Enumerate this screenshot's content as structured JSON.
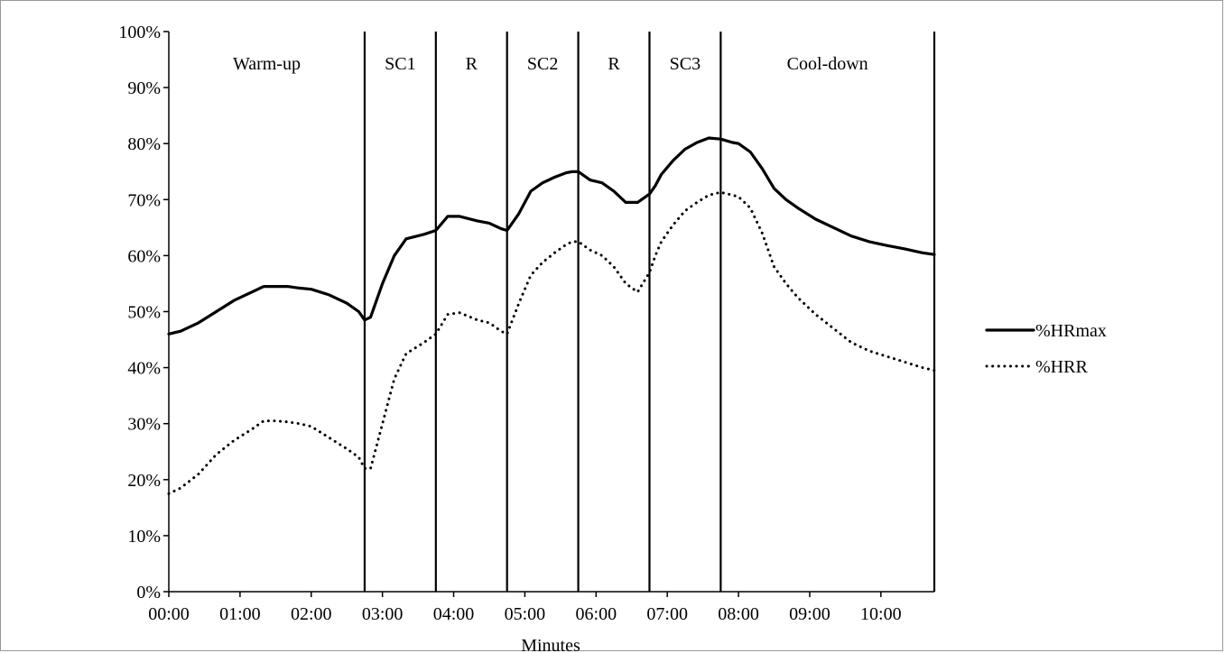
{
  "chart_data": {
    "type": "line",
    "title": "",
    "xlabel": "Minutes",
    "ylabel": "",
    "xlim": [
      0,
      645
    ],
    "ylim": [
      0,
      100
    ],
    "y_ticks": [
      "0%",
      "10%",
      "20%",
      "30%",
      "40%",
      "50%",
      "60%",
      "70%",
      "80%",
      "90%",
      "100%"
    ],
    "x_ticks": [
      {
        "label": "00:00",
        "value": 0
      },
      {
        "label": "01:00",
        "value": 60
      },
      {
        "label": "02:00",
        "value": 120
      },
      {
        "label": "03:00",
        "value": 180
      },
      {
        "label": "04:00",
        "value": 240
      },
      {
        "label": "05:00",
        "value": 300
      },
      {
        "label": "06:00",
        "value": 360
      },
      {
        "label": "07:00",
        "value": 420
      },
      {
        "label": "08:00",
        "value": 480
      },
      {
        "label": "09:00",
        "value": 540
      },
      {
        "label": "10:00",
        "value": 600
      }
    ],
    "phase_boundaries": [
      165,
      225,
      285,
      345,
      405,
      465,
      645
    ],
    "phases": [
      {
        "label": "Warm-up",
        "start": 0,
        "end": 165
      },
      {
        "label": "SC1",
        "start": 165,
        "end": 225
      },
      {
        "label": "R",
        "start": 225,
        "end": 285
      },
      {
        "label": "SC2",
        "start": 285,
        "end": 345
      },
      {
        "label": "R",
        "start": 345,
        "end": 405
      },
      {
        "label": "SC3",
        "start": 405,
        "end": 465
      },
      {
        "label": "Cool-down",
        "start": 465,
        "end": 645
      }
    ],
    "legend_position": "right",
    "series": [
      {
        "name": "%HRmax",
        "style": "solid",
        "x": [
          0,
          10,
          25,
          40,
          55,
          70,
          80,
          90,
          100,
          110,
          120,
          135,
          150,
          160,
          165,
          170,
          180,
          190,
          200,
          215,
          225,
          235,
          245,
          260,
          270,
          280,
          285,
          295,
          305,
          315,
          325,
          335,
          340,
          345,
          355,
          365,
          375,
          385,
          395,
          405,
          410,
          415,
          425,
          435,
          445,
          455,
          465,
          475,
          480,
          490,
          500,
          510,
          520,
          530,
          545,
          560,
          575,
          590,
          605,
          620,
          635,
          645
        ],
        "values": [
          46,
          46.5,
          48,
          50,
          52,
          53.5,
          54.5,
          54.5,
          54.5,
          54.2,
          54,
          53,
          51.5,
          50,
          48.5,
          49,
          55,
          60,
          63,
          63.8,
          64.5,
          67,
          67,
          66.2,
          65.8,
          64.8,
          64.5,
          67.5,
          71.5,
          73,
          74,
          74.8,
          75,
          75,
          73.5,
          73,
          71.5,
          69.5,
          69.5,
          71,
          72.5,
          74.5,
          77,
          79,
          80.2,
          81,
          80.8,
          80.2,
          80,
          78.5,
          75.5,
          72,
          70,
          68.5,
          66.5,
          65,
          63.5,
          62.5,
          61.8,
          61.2,
          60.5,
          60.2
        ]
      },
      {
        "name": "%HRR",
        "style": "dotted",
        "x": [
          0,
          10,
          25,
          40,
          55,
          70,
          80,
          90,
          100,
          110,
          120,
          135,
          150,
          160,
          165,
          170,
          180,
          190,
          200,
          215,
          225,
          235,
          245,
          260,
          270,
          280,
          285,
          295,
          305,
          315,
          325,
          335,
          340,
          345,
          355,
          365,
          375,
          385,
          395,
          405,
          410,
          415,
          425,
          435,
          445,
          455,
          465,
          475,
          480,
          490,
          500,
          510,
          520,
          530,
          545,
          560,
          575,
          590,
          605,
          620,
          635,
          645
        ],
        "values": [
          17.5,
          18.5,
          21,
          24.5,
          27,
          29,
          30.5,
          30.5,
          30.3,
          30,
          29.5,
          27.5,
          25.5,
          24,
          22,
          22,
          30,
          38,
          42.5,
          44.5,
          46,
          49.5,
          49.8,
          48.5,
          48,
          46.5,
          46,
          51.5,
          56.5,
          58.8,
          60.5,
          62,
          62.5,
          62.5,
          61,
          60,
          58,
          55,
          53.5,
          57,
          60,
          62.5,
          65.5,
          68,
          69.5,
          70.8,
          71.3,
          70.8,
          70.5,
          68.5,
          64,
          58,
          55,
          52.5,
          49.5,
          47,
          44.5,
          43,
          42,
          41,
          40,
          39.5
        ]
      }
    ]
  }
}
